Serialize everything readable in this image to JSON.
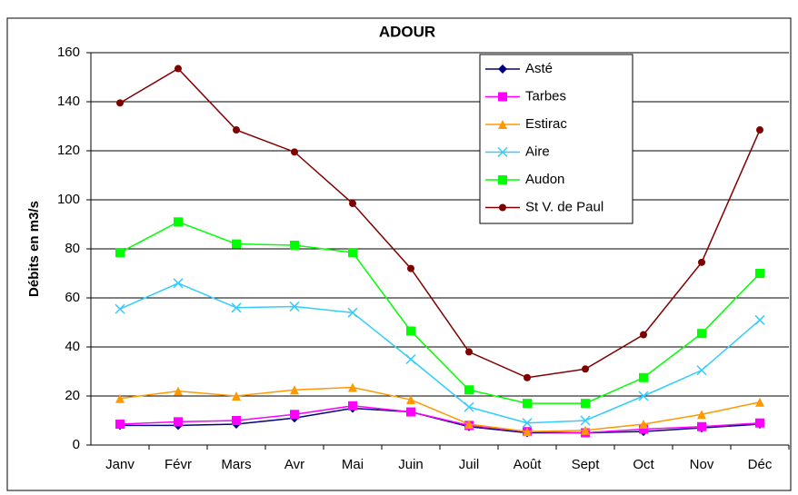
{
  "chart_data": {
    "type": "line",
    "title": "ADOUR",
    "ylabel": "Débits en m3/s",
    "categories": [
      "Janv",
      "Févr",
      "Mars",
      "Avr",
      "Mai",
      "Juin",
      "Juil",
      "Août",
      "Sept",
      "Oct",
      "Nov",
      "Déc"
    ],
    "series": [
      {
        "name": "Asté",
        "color": "#000080",
        "marker": "diamond",
        "values": [
          8,
          8,
          8.5,
          11,
          15,
          13.5,
          7.5,
          5,
          5,
          5.5,
          7,
          8.5
        ]
      },
      {
        "name": "Tarbes",
        "color": "#ff00ff",
        "marker": "square",
        "values": [
          8.5,
          9.5,
          10,
          12.5,
          16,
          13.5,
          8,
          5.5,
          5,
          6.5,
          7.5,
          9
        ]
      },
      {
        "name": "Estirac",
        "color": "#ff9900",
        "marker": "triangle",
        "values": [
          19,
          22,
          20,
          22.5,
          23.5,
          18.5,
          8.5,
          5.5,
          6,
          8.5,
          12.5,
          17.5
        ]
      },
      {
        "name": "Aire",
        "color": "#33ccff",
        "marker": "x",
        "values": [
          55.5,
          66,
          56,
          56.5,
          54,
          35,
          15.5,
          9,
          10,
          20,
          30.5,
          51
        ]
      },
      {
        "name": "Audon",
        "color": "#00ff00",
        "marker": "square",
        "values": [
          78.5,
          91,
          82,
          81.5,
          78.5,
          46.5,
          22.5,
          17,
          17,
          27.5,
          45.5,
          70
        ]
      },
      {
        "name": "St V. de Paul",
        "color": "#800000",
        "marker": "circle",
        "values": [
          139.5,
          153.5,
          128.5,
          119.5,
          98.5,
          72,
          38,
          27.5,
          31,
          45,
          74.5,
          128.5
        ]
      }
    ],
    "ylim": [
      0,
      160
    ],
    "yticks": [
      0,
      20,
      40,
      60,
      80,
      100,
      120,
      140,
      160
    ],
    "grid": true,
    "legend": "upper right"
  }
}
